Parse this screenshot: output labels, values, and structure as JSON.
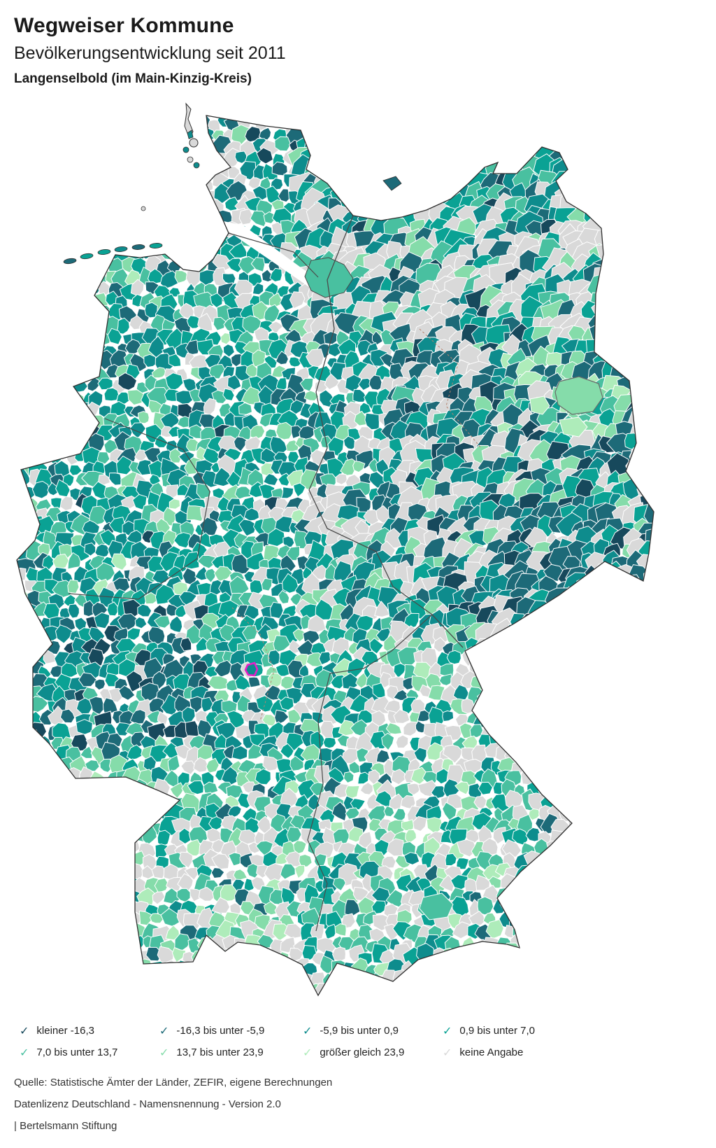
{
  "header": {
    "title": "Wegweiser Kommune",
    "subtitle": "Bevölkerungsentwicklung seit 2011",
    "location": "Langenselbold (im Main-Kinzig-Kreis)"
  },
  "map": {
    "highlight_name": "Langenselbold",
    "highlight_color": "#e620c8",
    "municipality_border_color": "#ffffff",
    "state_border_color": "#4a4a4a",
    "country_outline_color": "#2f2f2f",
    "kreis_border_color": "#b5836f"
  },
  "legend": {
    "items": [
      {
        "label": "kleiner -16,3",
        "color": "#17495c"
      },
      {
        "label": "-16,3 bis unter -5,9",
        "color": "#1d6a78"
      },
      {
        "label": "-5,9 bis unter 0,9",
        "color": "#0e8c8d"
      },
      {
        "label": "0,9 bis unter 7,0",
        "color": "#0aa294"
      },
      {
        "label": "7,0 bis unter 13,7",
        "color": "#49c0a0"
      },
      {
        "label": "13,7 bis unter 23,9",
        "color": "#85dcaa"
      },
      {
        "label": "größer gleich 23,9",
        "color": "#aeecba"
      },
      {
        "label": "keine Angabe",
        "color": "#d9d9d9"
      }
    ],
    "check_icon": "✓"
  },
  "footer": {
    "source": "Quelle: Statistische Ämter der Länder, ZEFIR, eigene Berechnungen",
    "license": "Datenlizenz Deutschland - Namensnennung - Version 2.0",
    "attribution": "| Bertelsmann Stiftung"
  }
}
